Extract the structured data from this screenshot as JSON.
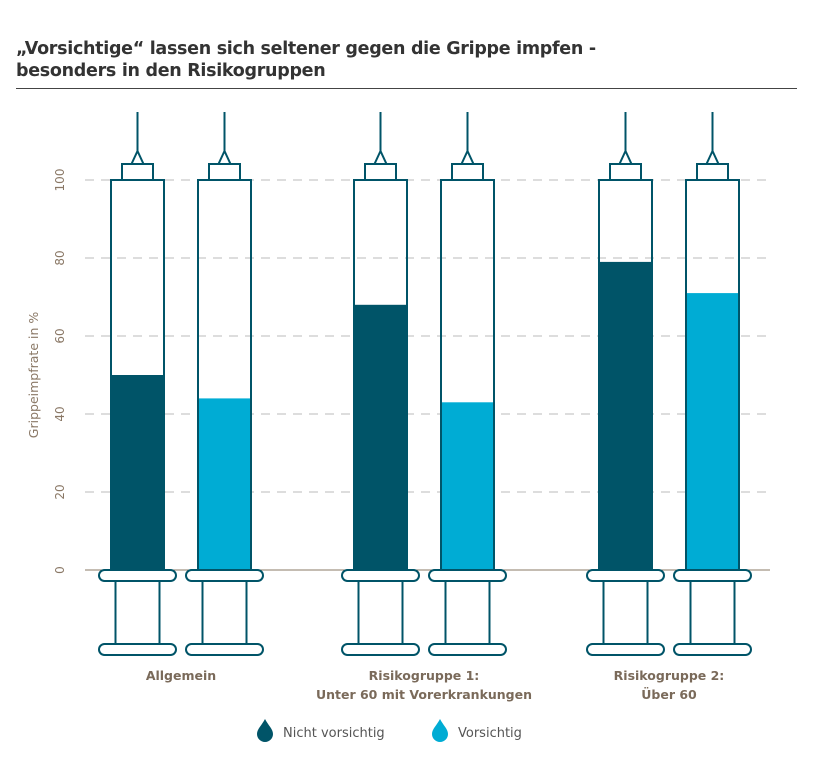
{
  "chart_data": {
    "type": "bar",
    "title_lines": [
      "„Vorsichtige“ lassen sich seltener gegen die Grippe impfen -",
      "besonders in den Risikogruppen"
    ],
    "ylabel": "Grippeimpfrate in %",
    "ylim": [
      0,
      100
    ],
    "yticks": [
      "0",
      "20",
      "40",
      "60",
      "80",
      "100"
    ],
    "grid": true,
    "categories": [
      {
        "lines": [
          "Allgemein"
        ]
      },
      {
        "lines": [
          "Risikogruppe 1:",
          "Unter 60 mit Vorerkrankungen"
        ]
      },
      {
        "lines": [
          "Risikogruppe 2:",
          "Über 60"
        ]
      }
    ],
    "series": [
      {
        "name": "Nicht vorsichtig",
        "color": "#005468",
        "values": [
          50,
          68,
          79
        ]
      },
      {
        "name": "Vorsichtig",
        "color": "#00acd4",
        "values": [
          44,
          43,
          71
        ]
      }
    ],
    "legend_placement": "bottom-center"
  }
}
